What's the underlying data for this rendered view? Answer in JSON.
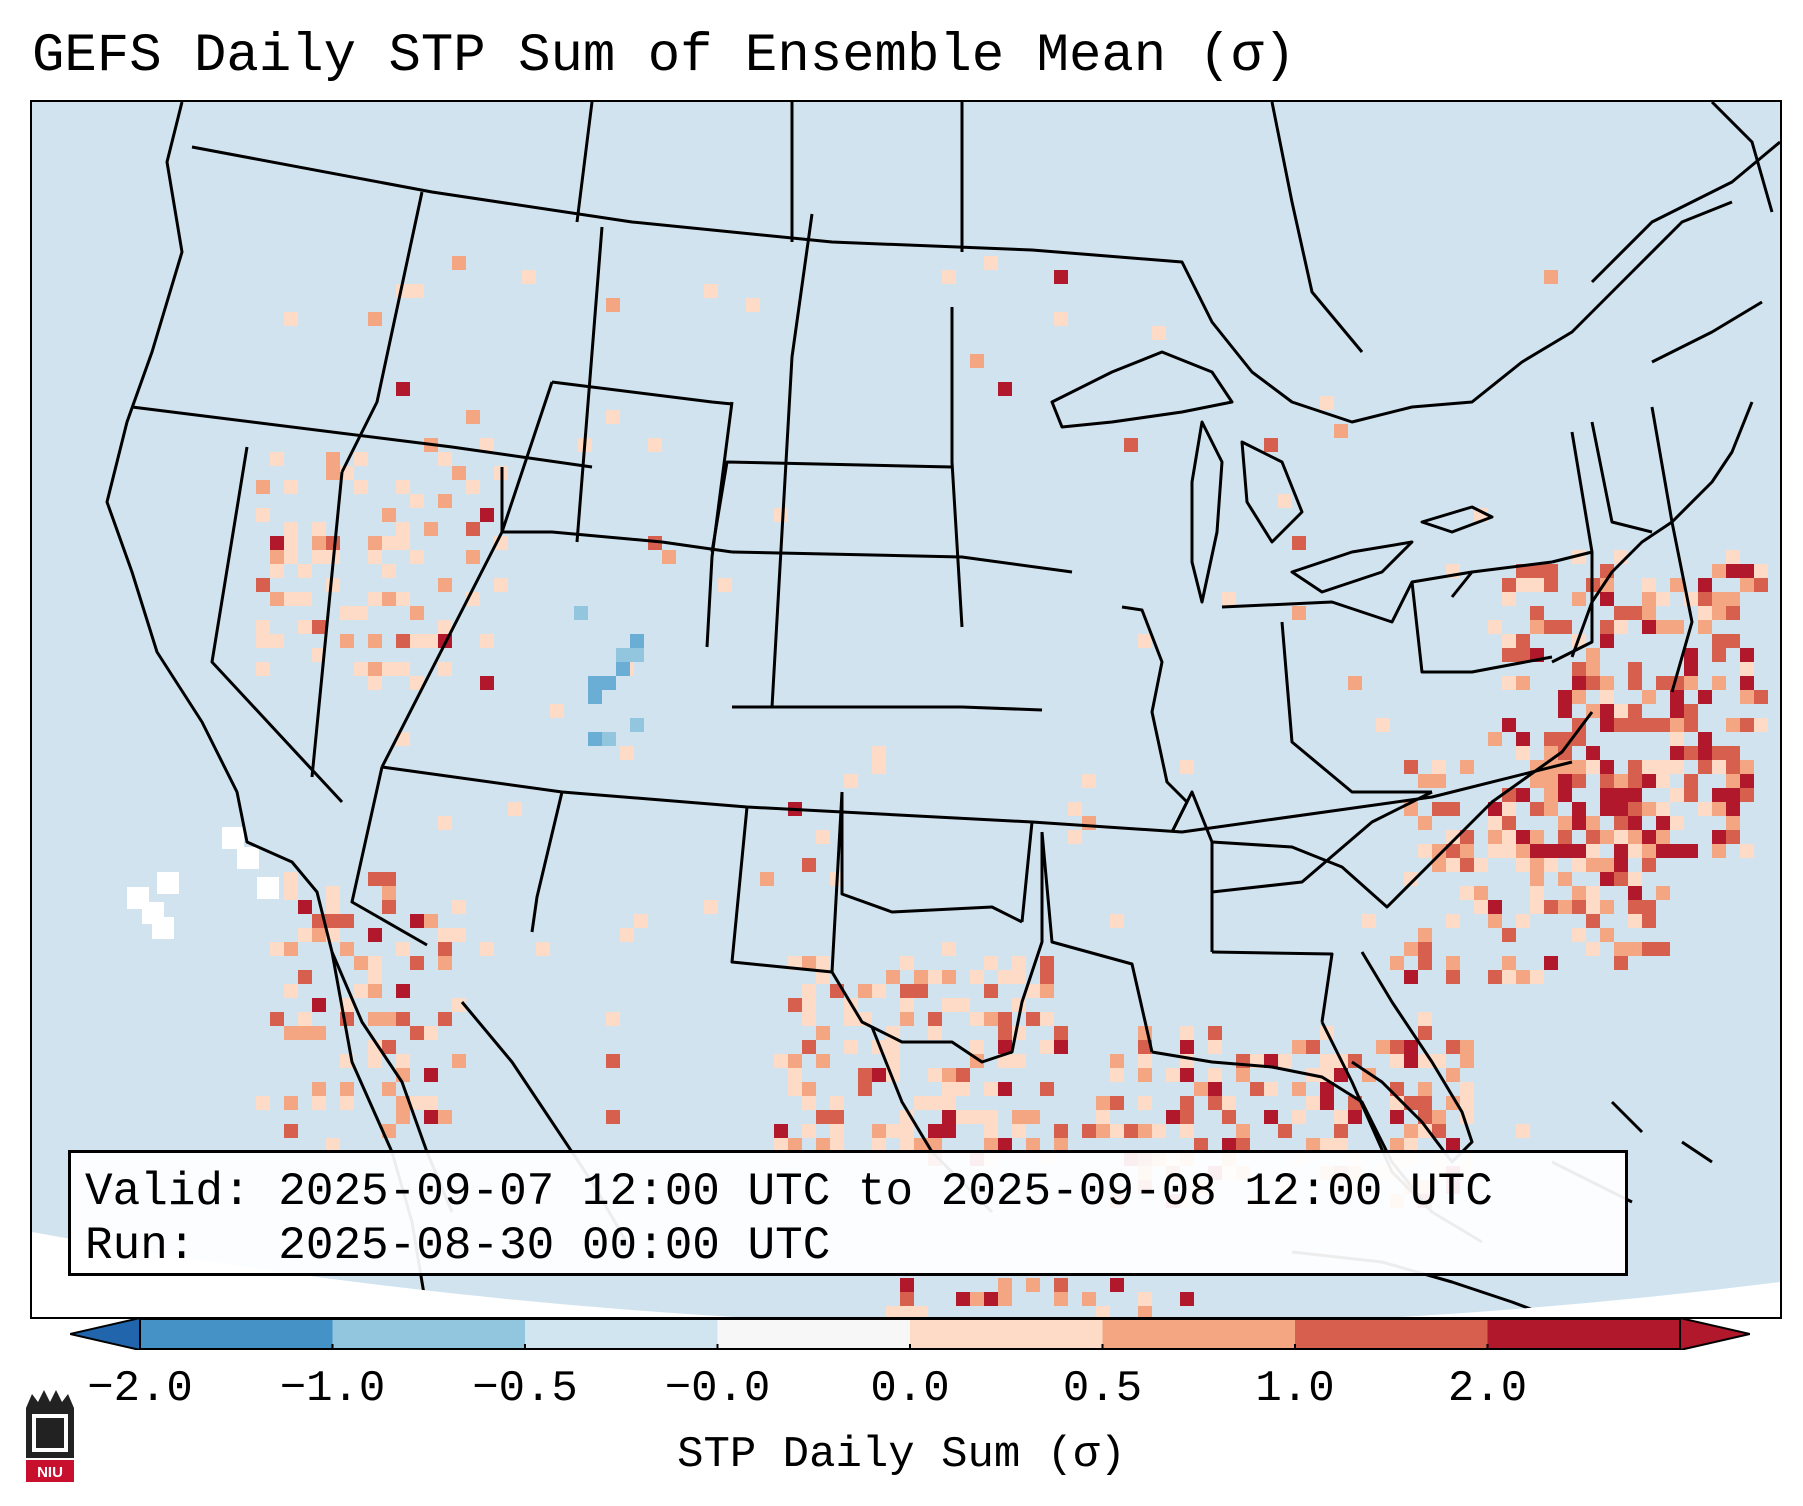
{
  "title": "GEFS Daily STP Sum of Ensemble Mean (σ)",
  "valid_line": "Valid: 2025-09-07 12:00 UTC to 2025-09-08 12:00 UTC",
  "run_line": "Run:   2025-08-30 00:00 UTC",
  "colorbar": {
    "label": "STP Daily Sum (σ)",
    "ticks": [
      "−2.0",
      "−1.0",
      "−0.5",
      "−0.0",
      "0.0",
      "0.5",
      "1.0",
      "2.0"
    ],
    "bin_colors": [
      "#4592c6",
      "#92c5de",
      "#d1e5f0",
      "#f7f7f7",
      "#fddbc7",
      "#f4a582",
      "#d6604d",
      "#b2182b"
    ],
    "under_color": "#2166ac",
    "over_color": "#b2182b"
  },
  "colors": {
    "ocean_land_background": "#d0e3ef",
    "frame": "#000000"
  },
  "logo": {
    "label": "NIU",
    "color": "#c8102e"
  }
}
